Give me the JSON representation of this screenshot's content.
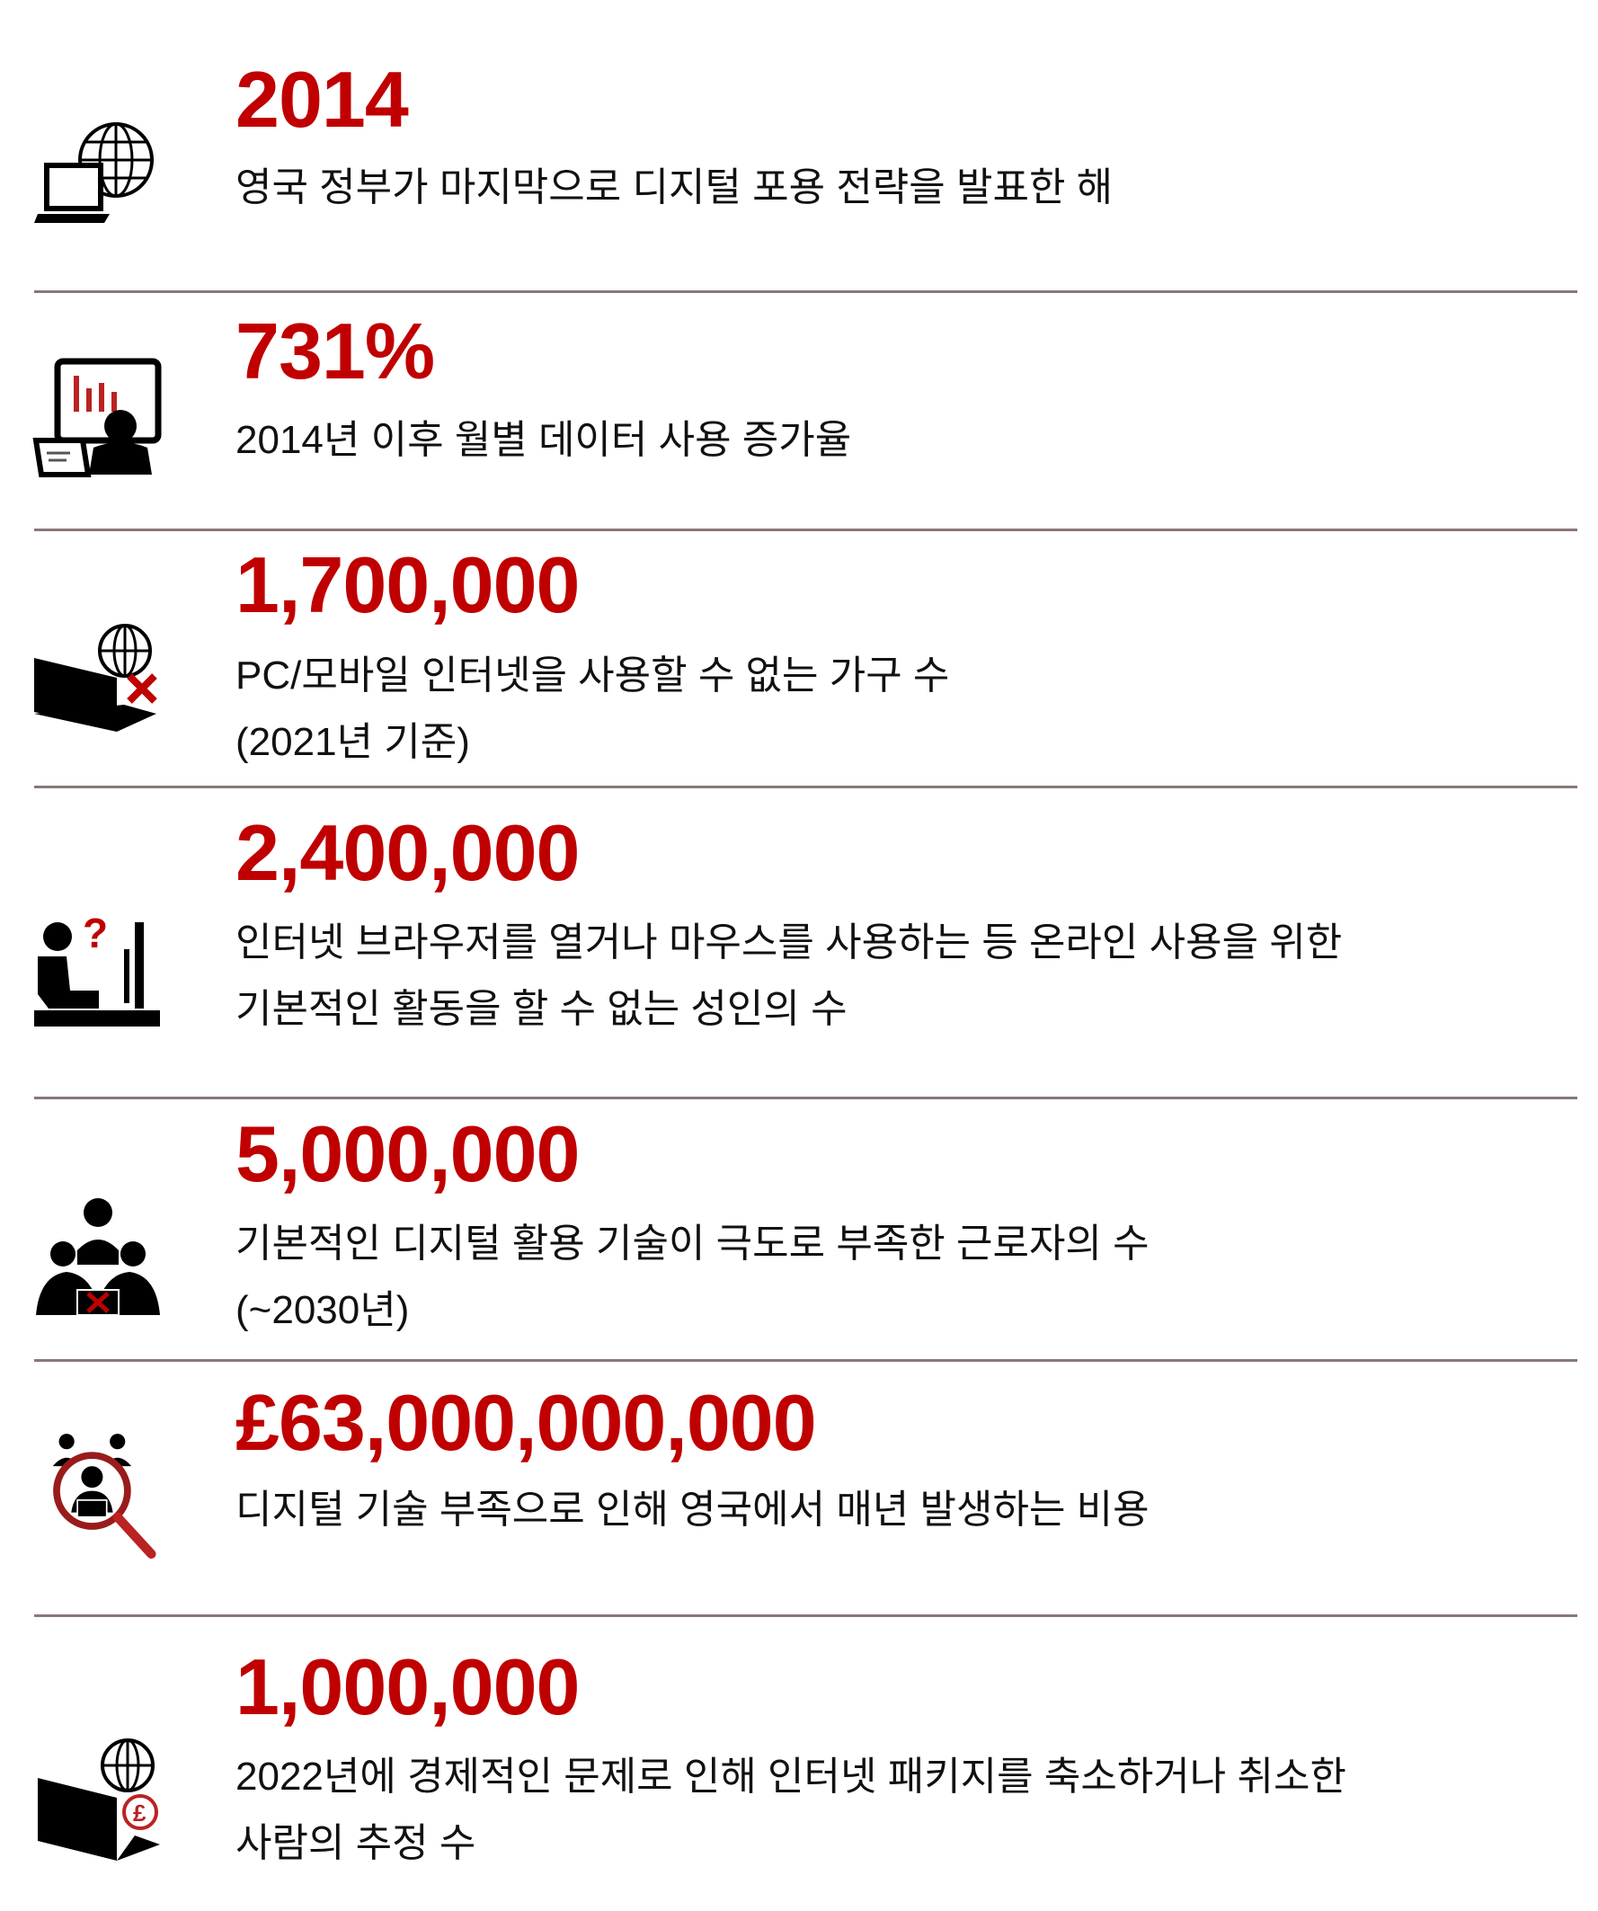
{
  "colors": {
    "accent": "#c00000",
    "text": "#111111",
    "divider": "#8a7777"
  },
  "stats": [
    {
      "value": "2014",
      "description": [
        "영국 정부가 마지막으로 디지털 포용 전략을 발표한 해"
      ],
      "icon": "laptop-globe-icon"
    },
    {
      "value": "731%",
      "description": [
        "2014년 이후 월별 데이터 사용 증가율"
      ],
      "icon": "monitor-chart-person-icon"
    },
    {
      "value": "1,700,000",
      "description": [
        "PC/모바일 인터넷을 사용할 수 없는 가구 수",
        "(2021년 기준)"
      ],
      "icon": "laptop-globe-no-access-icon"
    },
    {
      "value": "2,400,000",
      "description": [
        "인터넷 브라우저를 열거나 마우스를 사용하는 등 온라인 사용을 위한",
        "기본적인 활동을 할 수 없는 성인의 수"
      ],
      "icon": "confused-computer-user-icon"
    },
    {
      "value": "5,000,000",
      "description": [
        "기본적인 디지털 활용 기술이 극도로 부족한 근로자의 수",
        "(~2030년)"
      ],
      "icon": "workers-group-icon"
    },
    {
      "value": "£63,000,000,000",
      "description": [
        "디지털 기술 부족으로 인해 영국에서 매년 발생하는 비용"
      ],
      "icon": "magnifier-workers-icon"
    },
    {
      "value": "1,000,000",
      "description": [
        "2022년에 경제적인 문제로 인해 인터넷 패키지를 축소하거나 취소한",
        "사람의 추정 수"
      ],
      "icon": "laptop-globe-pound-icon"
    }
  ]
}
